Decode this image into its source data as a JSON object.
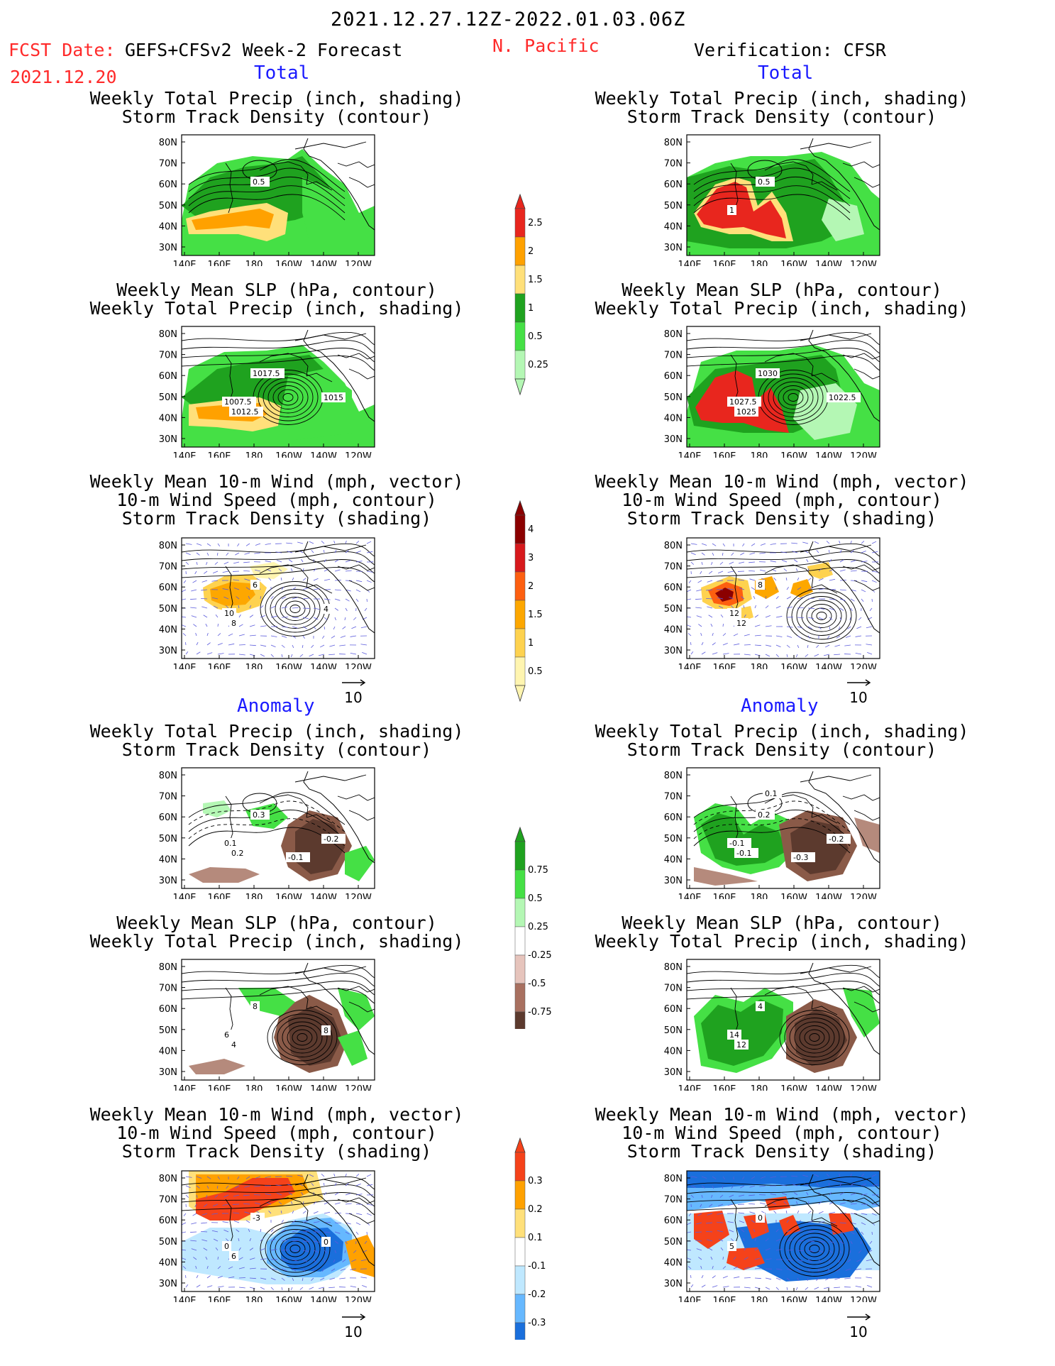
{
  "header": {
    "date_range": "2021.12.27.12Z-2022.01.03.06Z",
    "fcst_label": "FCST Date:",
    "fcst_model": "GEFS+CFSv2 Week-2 Forecast",
    "fcst_date": "2021.12.20",
    "region": "N. Pacific",
    "verification": "Verification: CFSR"
  },
  "sections": {
    "total": "Total",
    "anomaly": "Anomaly"
  },
  "panel_titles": {
    "precip_storm": [
      "Weekly Total Precip (inch, shading)",
      "Storm Track Density (contour)"
    ],
    "slp_precip": [
      "Weekly Mean SLP (hPa, contour)",
      "Weekly Total Precip (inch, shading)"
    ],
    "wind_storm": [
      "Weekly Mean 10-m Wind (mph, vector)",
      "10-m Wind Speed (mph, contour)",
      "Storm Track Density (shading)"
    ]
  },
  "axes": {
    "lat_ticks": [
      "80N",
      "70N",
      "60N",
      "50N",
      "40N",
      "30N"
    ],
    "lon_ticks": [
      "140E",
      "160E",
      "180",
      "160W",
      "140W",
      "120W"
    ]
  },
  "vector_ref": "10",
  "colorbars": {
    "precip_total": {
      "labels": [
        "2.5",
        "2",
        "1.5",
        "1",
        "0.5",
        "0.25"
      ],
      "colors": [
        "#e8261e",
        "#ffa100",
        "#ffe07a",
        "#1fa21f",
        "#45e045",
        "#b4f7b4"
      ]
    },
    "storm_total": {
      "labels": [
        "4",
        "3",
        "2",
        "1.5",
        "1",
        "0.5"
      ],
      "colors": [
        "#8b0000",
        "#d7191c",
        "#fd5f10",
        "#fda700",
        "#fed24f",
        "#fff5b0"
      ]
    },
    "precip_anom": {
      "labels": [
        "0.75",
        "0.5",
        "0.25",
        "-0.25",
        "-0.5",
        "-0.75"
      ],
      "colors": [
        "#1fa21f",
        "#45e045",
        "#b4f7b4",
        "#ffffff",
        "#e6c4bc",
        "#a87060",
        "#5c3a2e"
      ]
    },
    "storm_anom": {
      "labels": [
        "0.3",
        "0.2",
        "0.1",
        "-0.1",
        "-0.2",
        "-0.3"
      ],
      "colors": [
        "#f5421a",
        "#ffa100",
        "#ffe07a",
        "#ffffff",
        "#bfe8ff",
        "#66b8ff",
        "#1a6fdc"
      ]
    }
  },
  "contour_labels": {
    "f1": [
      "0.5"
    ],
    "f2": [
      "1017.5",
      "1007.5",
      "1012.5",
      "1015"
    ],
    "f3": [
      "6",
      "10",
      "8",
      "4"
    ],
    "f4": [
      "0.3",
      "0.1",
      "0.2",
      "-0.2",
      "-0.1"
    ],
    "f5": [
      "8",
      "6",
      "4",
      "8"
    ],
    "f6": [
      "-3",
      "0",
      "6",
      "0"
    ],
    "v1": [
      "0.5",
      "1"
    ],
    "v2": [
      "1030",
      "1027.5",
      "1025",
      "1022.5"
    ],
    "v3": [
      "8",
      "12",
      "12"
    ],
    "v4": [
      "0.2",
      "-0.1",
      "-0.1",
      "-0.2",
      "-0.3",
      "0.1"
    ],
    "v5": [
      "4",
      "14",
      "12"
    ],
    "v6": [
      "0",
      "5"
    ]
  }
}
